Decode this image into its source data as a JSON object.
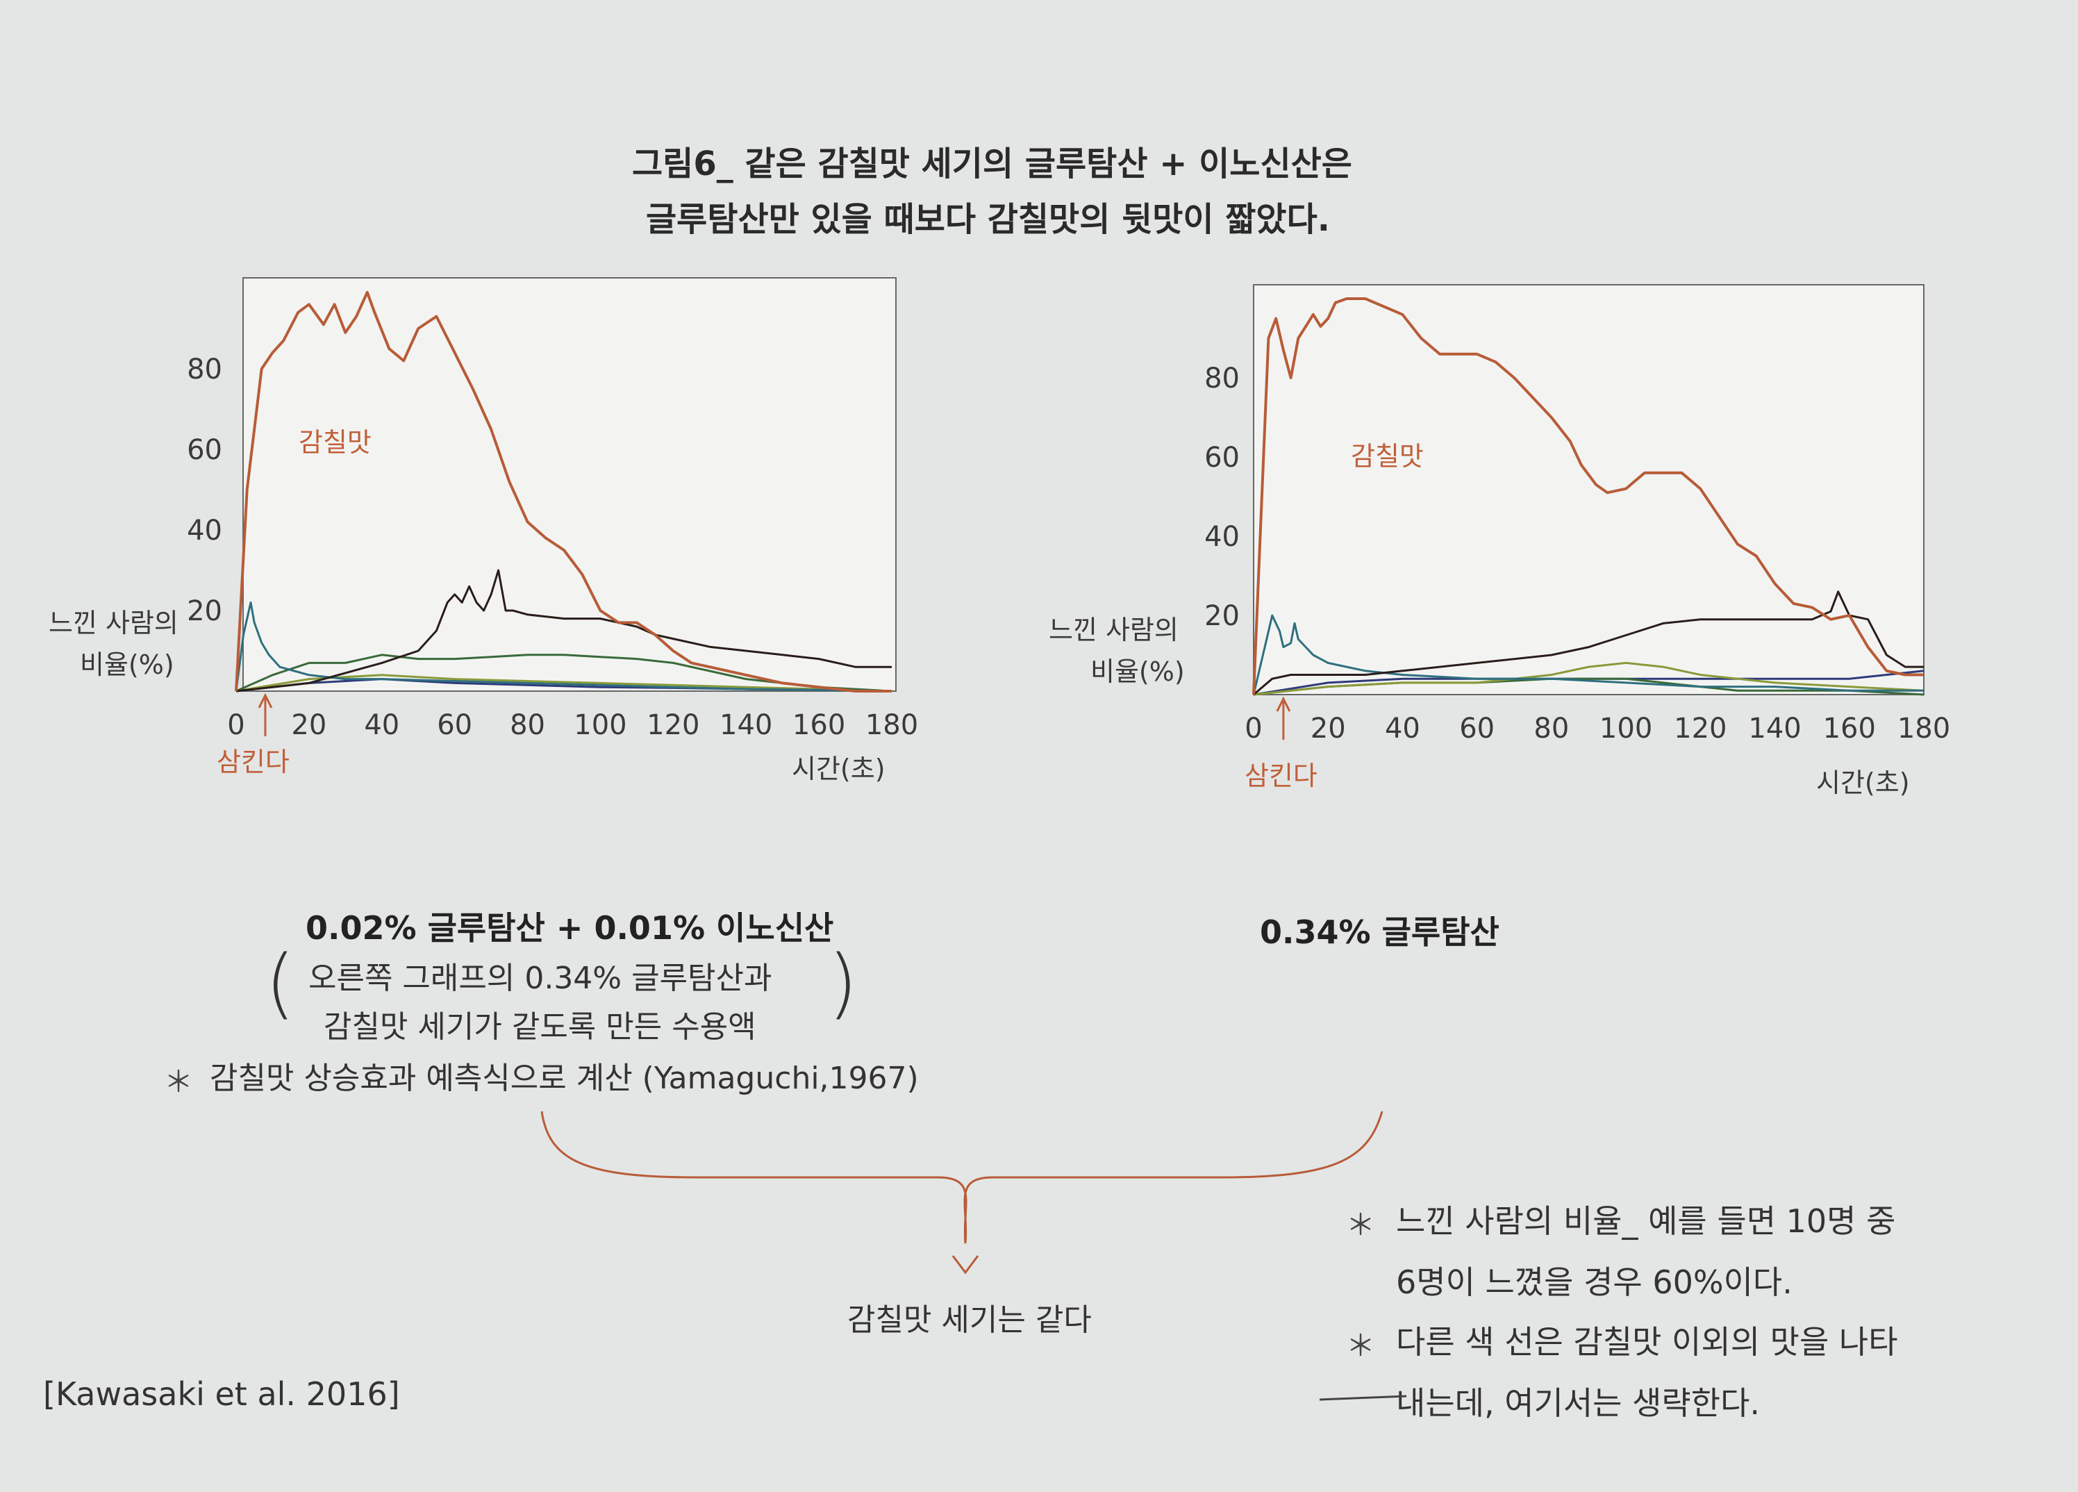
{
  "title": {
    "line1": "그림6_ 같은 감칠맛 세기의 글루탐산 + 이노신산은",
    "line2": "글루탐산만 있을 때보다 감칠맛의 뒷맛이 짧았다."
  },
  "chart_data": [
    {
      "type": "line",
      "xlabel": "시간(초)",
      "ylabel_lines": [
        "느낀 사람의",
        "비율(%)"
      ],
      "x_ticks": [
        "0",
        "20",
        "40",
        "60",
        "80",
        "100",
        "120",
        "140",
        "160",
        "180"
      ],
      "y_ticks": [
        "20",
        "40",
        "60",
        "80"
      ],
      "xlim": [
        0,
        180
      ],
      "ylim": [
        0,
        100
      ],
      "marker_label": "삼킨다",
      "marker_x": 8,
      "series_label": "감칠맛",
      "series": [
        {
          "color": "#b85c38",
          "x": [
            0,
            3,
            7,
            10,
            13,
            17,
            20,
            24,
            27,
            30,
            33,
            36,
            38,
            42,
            46,
            50,
            55,
            60,
            65,
            70,
            75,
            80,
            85,
            90,
            95,
            100,
            105,
            110,
            115,
            120,
            125,
            130,
            140,
            150,
            160,
            170,
            180
          ],
          "y": [
            0,
            50,
            80,
            84,
            87,
            94,
            96,
            91,
            96,
            89,
            93,
            99,
            94,
            85,
            82,
            90,
            93,
            84,
            75,
            65,
            52,
            42,
            38,
            35,
            29,
            20,
            17,
            17,
            14,
            10,
            7,
            6,
            4,
            2,
            1,
            0,
            0
          ]
        },
        {
          "color": "#2a1d1a",
          "x": [
            0,
            20,
            40,
            50,
            55,
            58,
            60,
            62,
            64,
            66,
            68,
            70,
            72,
            74,
            76,
            80,
            90,
            100,
            105,
            110,
            115,
            120,
            130,
            140,
            150,
            160,
            170,
            180
          ],
          "y": [
            0,
            2,
            7,
            10,
            15,
            22,
            24,
            22,
            26,
            22,
            20,
            24,
            30,
            20,
            20,
            19,
            18,
            18,
            17,
            16,
            14,
            13,
            11,
            10,
            9,
            8,
            6,
            6
          ]
        },
        {
          "color": "#2f6f7f",
          "x": [
            0,
            2,
            4,
            5,
            7,
            9,
            12,
            16,
            20,
            30,
            40,
            60,
            80,
            100,
            120,
            140,
            160,
            180
          ],
          "y": [
            0,
            14,
            22,
            17,
            12,
            9,
            6,
            5,
            4,
            3,
            3,
            2.5,
            2,
            1.5,
            1,
            0.5,
            0.3,
            0
          ]
        },
        {
          "color": "#3a6a3a",
          "x": [
            0,
            10,
            20,
            30,
            40,
            50,
            60,
            70,
            80,
            90,
            100,
            110,
            120,
            130,
            140,
            160,
            180
          ],
          "y": [
            0,
            4,
            7,
            7,
            9,
            8,
            8,
            8.5,
            9,
            9,
            8.5,
            8,
            7,
            5,
            3,
            1,
            0
          ]
        },
        {
          "color": "#8a9a3a",
          "x": [
            0,
            20,
            40,
            60,
            80,
            100,
            120,
            140,
            160,
            180
          ],
          "y": [
            0,
            3,
            4,
            3,
            2.5,
            2,
            1.5,
            1,
            0.5,
            0
          ]
        },
        {
          "color": "#2f3a7a",
          "x": [
            0,
            20,
            40,
            60,
            80,
            100,
            120,
            140,
            160,
            180
          ],
          "y": [
            0,
            2,
            3,
            2,
            1.5,
            1,
            0.8,
            0.5,
            0.3,
            0
          ]
        }
      ]
    },
    {
      "type": "line",
      "xlabel": "시간(초)",
      "ylabel_lines": [
        "느낀 사람의",
        "비율(%)"
      ],
      "x_ticks": [
        "0",
        "20",
        "40",
        "60",
        "80",
        "100",
        "120",
        "140",
        "160",
        "180"
      ],
      "y_ticks": [
        "20",
        "40",
        "60",
        "80"
      ],
      "xlim": [
        0,
        180
      ],
      "ylim": [
        0,
        100
      ],
      "marker_label": "삼킨다",
      "marker_x": 8,
      "series_label": "감칠맛",
      "series": [
        {
          "color": "#b85c38",
          "x": [
            0,
            4,
            6,
            8,
            10,
            12,
            14,
            16,
            18,
            20,
            22,
            25,
            28,
            30,
            35,
            40,
            45,
            50,
            55,
            60,
            65,
            70,
            75,
            80,
            85,
            88,
            92,
            95,
            100,
            105,
            110,
            115,
            120,
            125,
            130,
            135,
            140,
            145,
            150,
            155,
            160,
            165,
            170,
            175,
            180
          ],
          "y": [
            0,
            90,
            95,
            87,
            80,
            90,
            93,
            96,
            93,
            95,
            99,
            100,
            100,
            100,
            98,
            96,
            90,
            86,
            86,
            86,
            84,
            80,
            75,
            70,
            64,
            58,
            53,
            51,
            52,
            56,
            56,
            56,
            52,
            45,
            38,
            35,
            28,
            23,
            22,
            19,
            20,
            12,
            6,
            5,
            5
          ]
        },
        {
          "color": "#2a1d1a",
          "x": [
            0,
            5,
            10,
            20,
            30,
            40,
            60,
            80,
            90,
            100,
            110,
            120,
            130,
            140,
            145,
            150,
            155,
            157,
            160,
            165,
            170,
            175,
            180
          ],
          "y": [
            0,
            4,
            5,
            5,
            5,
            6,
            8,
            10,
            12,
            15,
            18,
            19,
            19,
            19,
            19,
            19,
            21,
            26,
            20,
            19,
            10,
            7,
            7
          ]
        },
        {
          "color": "#2f6f7f",
          "x": [
            0,
            3,
            5,
            7,
            8,
            10,
            11,
            12,
            14,
            16,
            20,
            25,
            30,
            40,
            60,
            80,
            100,
            120,
            140,
            160,
            180
          ],
          "y": [
            0,
            12,
            20,
            16,
            12,
            13,
            18,
            14,
            12,
            10,
            8,
            7,
            6,
            5,
            4,
            4,
            3,
            2,
            2,
            1,
            1
          ]
        },
        {
          "color": "#8a9a3a",
          "x": [
            0,
            20,
            40,
            60,
            80,
            90,
            100,
            110,
            120,
            140,
            160,
            180
          ],
          "y": [
            0,
            2,
            3,
            3,
            5,
            7,
            8,
            7,
            5,
            3,
            2,
            1
          ]
        },
        {
          "color": "#3a6a3a",
          "x": [
            0,
            20,
            40,
            60,
            80,
            100,
            110,
            120,
            130,
            140,
            160,
            180
          ],
          "y": [
            0,
            2,
            3,
            3,
            4,
            4,
            3,
            2,
            1,
            1,
            1,
            0
          ]
        },
        {
          "color": "#2f3a7a",
          "x": [
            0,
            20,
            40,
            60,
            80,
            100,
            120,
            140,
            160,
            170,
            180
          ],
          "y": [
            0,
            3,
            4,
            4,
            4,
            4,
            4,
            4,
            4,
            5,
            6
          ]
        }
      ]
    }
  ],
  "captions": {
    "left_bold": "0.02% 글루탐산 + 0.01% 이노신산",
    "left_sub1": "오른쪽 그래프의 0.34% 글루탐산과",
    "left_sub2": "감칠맛 세기가 같도록 만든 수용액",
    "left_note": "감칠맛 상승효과 예측식으로 계산 (Yamaguchi,1967)",
    "right_bold": "0.34% 글루탐산",
    "paren_open": "(",
    "paren_close": ")",
    "star": "＊"
  },
  "conclusion": "감칠맛 세기는 같다",
  "notes": {
    "note1_a": "느낀 사람의 비율_ 예를 들면 10명 중",
    "note1_b": "6명이 느꼈을 경우 60%이다.",
    "note2_a": "다른 색 선은 감칠맛 이외의 맛을 나타",
    "note2_b": "내는데, 여기서는 생략한다."
  },
  "citation": "[Kawasaki et al. 2016]",
  "colors": {
    "accent_orange": "#c0603a",
    "frame": "#555555"
  }
}
